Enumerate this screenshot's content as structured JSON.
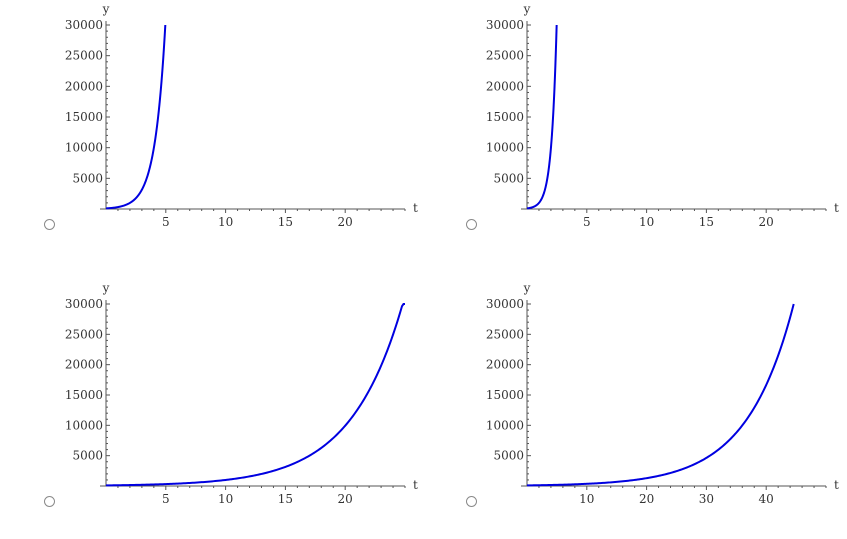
{
  "chart_data": [
    {
      "type": "line",
      "title": "",
      "xlabel": "t",
      "ylabel": "y",
      "xlim": [
        0,
        25
      ],
      "ylim": [
        0,
        30000
      ],
      "x_ticks": [
        5,
        10,
        15,
        20
      ],
      "y_ticks": [
        5000,
        10000,
        15000,
        20000,
        25000,
        30000
      ],
      "x_tick_labels": [
        "5",
        "10",
        "15",
        "20"
      ],
      "y_tick_labels": [
        "5000",
        "10000",
        "15000",
        "20000",
        "25000",
        "30000"
      ],
      "curve": "y = 100·e^(1.15 t)",
      "series": [
        {
          "x": [
            0,
            1,
            2,
            3,
            3.5,
            4,
            4.5,
            4.96
          ],
          "y": [
            100,
            316,
            997,
            3150,
            5600,
            9950,
            17700,
            30000
          ]
        }
      ],
      "grid": false
    },
    {
      "type": "line",
      "title": "",
      "xlabel": "t",
      "ylabel": "y",
      "xlim": [
        0,
        25
      ],
      "ylim": [
        0,
        30000
      ],
      "x_ticks": [
        5,
        10,
        15,
        20
      ],
      "y_ticks": [
        5000,
        10000,
        15000,
        20000,
        25000,
        30000
      ],
      "x_tick_labels": [
        "5",
        "10",
        "15",
        "20"
      ],
      "y_tick_labels": [
        "5000",
        "10000",
        "15000",
        "20000",
        "25000",
        "30000"
      ],
      "curve": "y = 100·e^(2.3 t)",
      "series": [
        {
          "x": [
            0,
            0.5,
            1,
            1.5,
            2,
            2.25,
            2.48
          ],
          "y": [
            100,
            316,
            997,
            3150,
            9950,
            17700,
            30000
          ]
        }
      ],
      "grid": false
    },
    {
      "type": "line",
      "title": "",
      "xlabel": "t",
      "ylabel": "y",
      "xlim": [
        0,
        25
      ],
      "ylim": [
        0,
        30000
      ],
      "x_ticks": [
        5,
        10,
        15,
        20
      ],
      "y_ticks": [
        5000,
        10000,
        15000,
        20000,
        25000,
        30000
      ],
      "x_tick_labels": [
        "5",
        "10",
        "15",
        "20"
      ],
      "y_tick_labels": [
        "5000",
        "10000",
        "15000",
        "20000",
        "25000",
        "30000"
      ],
      "curve": "y = 100·e^(0.23 t)",
      "series": [
        {
          "x": [
            0,
            5,
            10,
            15,
            20,
            25
          ],
          "y": [
            100,
            316,
            997,
            3150,
            9950,
            31400
          ]
        }
      ],
      "grid": false
    },
    {
      "type": "line",
      "title": "",
      "xlabel": "t",
      "ylabel": "y",
      "xlim": [
        0,
        50
      ],
      "ylim": [
        0,
        30000
      ],
      "x_ticks": [
        10,
        20,
        30,
        40
      ],
      "y_ticks": [
        5000,
        10000,
        15000,
        20000,
        25000,
        30000
      ],
      "x_tick_labels": [
        "10",
        "20",
        "30",
        "40"
      ],
      "y_tick_labels": [
        "5000",
        "10000",
        "15000",
        "20000",
        "25000",
        "30000"
      ],
      "curve": "y = 100·e^(0.128 t)",
      "series": [
        {
          "x": [
            0,
            10,
            20,
            30,
            35,
            40,
            44.6
          ],
          "y": [
            100,
            360,
            1290,
            4650,
            8800,
            16700,
            30000
          ]
        }
      ],
      "grid": false
    }
  ],
  "options": [
    {
      "selected": false
    },
    {
      "selected": false
    },
    {
      "selected": false
    },
    {
      "selected": false
    }
  ],
  "colors": {
    "curve": "#0000e0",
    "axis": "#555555",
    "text": "#333333"
  }
}
